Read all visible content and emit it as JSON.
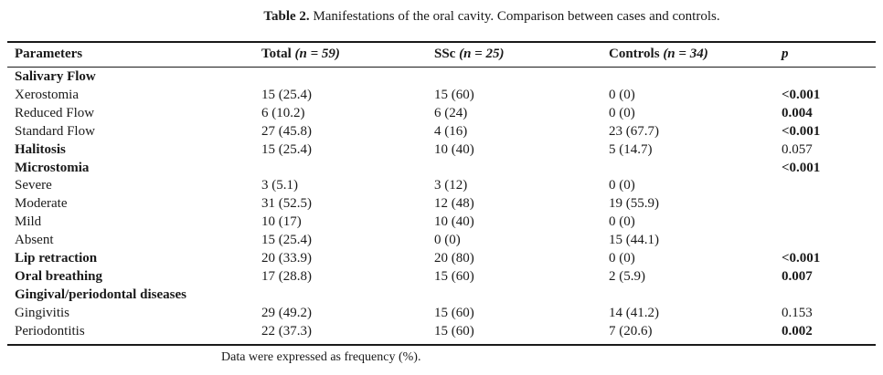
{
  "caption": {
    "label": "Table 2.",
    "text": "Manifestations of the oral cavity. Comparison between cases and controls."
  },
  "headers": {
    "parameters": "Parameters",
    "total": "Total",
    "total_n": "(n = 59)",
    "ssc": "SSc",
    "ssc_n": "(n = 25)",
    "controls": "Controls",
    "controls_n": "(n = 34)",
    "p": "p"
  },
  "rows": [
    {
      "param": "Salivary Flow",
      "total": "",
      "ssc": "",
      "controls": "",
      "p": "",
      "param_bold": true,
      "p_bold": false
    },
    {
      "param": "Xerostomia",
      "total": "15 (25.4)",
      "ssc": "15 (60)",
      "controls": "0 (0)",
      "p": "<0.001",
      "param_bold": false,
      "p_bold": true
    },
    {
      "param": "Reduced Flow",
      "total": "6 (10.2)",
      "ssc": "6 (24)",
      "controls": "0 (0)",
      "p": "0.004",
      "param_bold": false,
      "p_bold": true
    },
    {
      "param": "Standard Flow",
      "total": "27 (45.8)",
      "ssc": "4 (16)",
      "controls": "23 (67.7)",
      "p": "<0.001",
      "param_bold": false,
      "p_bold": true
    },
    {
      "param": "Halitosis",
      "total": "15 (25.4)",
      "ssc": "10 (40)",
      "controls": "5 (14.7)",
      "p": "0.057",
      "param_bold": true,
      "p_bold": false
    },
    {
      "param": "Microstomia",
      "total": "",
      "ssc": "",
      "controls": "",
      "p": "<0.001",
      "param_bold": true,
      "p_bold": true
    },
    {
      "param": "Severe",
      "total": "3 (5.1)",
      "ssc": "3 (12)",
      "controls": "0 (0)",
      "p": "",
      "param_bold": false,
      "p_bold": false
    },
    {
      "param": "Moderate",
      "total": "31 (52.5)",
      "ssc": "12 (48)",
      "controls": "19 (55.9)",
      "p": "",
      "param_bold": false,
      "p_bold": false
    },
    {
      "param": "Mild",
      "total": "10 (17)",
      "ssc": "10 (40)",
      "controls": "0 (0)",
      "p": "",
      "param_bold": false,
      "p_bold": false
    },
    {
      "param": "Absent",
      "total": "15 (25.4)",
      "ssc": "0 (0)",
      "controls": "15 (44.1)",
      "p": "",
      "param_bold": false,
      "p_bold": false
    },
    {
      "param": "Lip retraction",
      "total": "20 (33.9)",
      "ssc": "20 (80)",
      "controls": "0 (0)",
      "p": "<0.001",
      "param_bold": true,
      "p_bold": true
    },
    {
      "param": "Oral breathing",
      "total": "17 (28.8)",
      "ssc": "15 (60)",
      "controls": "2 (5.9)",
      "p": "0.007",
      "param_bold": true,
      "p_bold": true
    },
    {
      "param": "Gingival/periodontal diseases",
      "total": "",
      "ssc": "",
      "controls": "",
      "p": "",
      "param_bold": true,
      "p_bold": false
    },
    {
      "param": "Gingivitis",
      "total": "29 (49.2)",
      "ssc": "15 (60)",
      "controls": "14 (41.2)",
      "p": "0.153",
      "param_bold": false,
      "p_bold": false
    },
    {
      "param": "Periodontitis",
      "total": "22 (37.3)",
      "ssc": "15 (60)",
      "controls": "7 (20.6)",
      "p": "0.002",
      "param_bold": false,
      "p_bold": true
    }
  ],
  "footnote": "Data were expressed as frequency (%)."
}
